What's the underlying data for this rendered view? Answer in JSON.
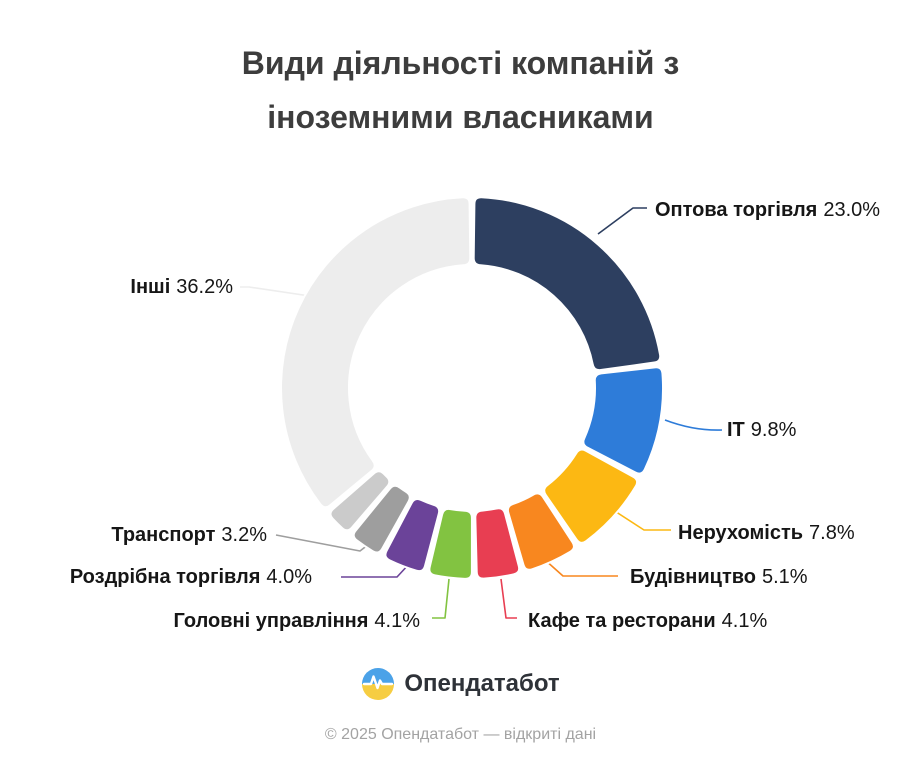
{
  "title": {
    "line1": "Види діяльності компаній з",
    "line2": "іноземними власниками"
  },
  "chart_data": {
    "type": "pie",
    "subtype": "donut",
    "title": "Види діяльності компаній з іноземними власниками",
    "unit": "%",
    "legend_position": "callout-labels",
    "segments": [
      {
        "label": "Оптова торгівля",
        "value": 23.0,
        "pct_label": "23.0%",
        "color": "#2d3f60"
      },
      {
        "label": "IT",
        "value": 9.8,
        "pct_label": "9.8%",
        "color": "#2e7cd9"
      },
      {
        "label": "Нерухомість",
        "value": 7.8,
        "pct_label": "7.8%",
        "color": "#fcb813"
      },
      {
        "label": "Будівництво",
        "value": 5.1,
        "pct_label": "5.1%",
        "color": "#f8871f"
      },
      {
        "label": "Кафе та ресторани",
        "value": 4.1,
        "pct_label": "4.1%",
        "color": "#e83e52"
      },
      {
        "label": "Головні управління",
        "value": 4.1,
        "pct_label": "4.1%",
        "color": "#82c341"
      },
      {
        "label": "Роздрібна торгівля",
        "value": 4.0,
        "pct_label": "4.0%",
        "color": "#6b4399"
      },
      {
        "label": "Транспорт",
        "value": 3.2,
        "pct_label": "3.2%",
        "color": "#9e9e9e"
      },
      {
        "label": "",
        "value": 2.7,
        "pct_label": "",
        "color": "#cbcbcb"
      },
      {
        "label": "Інші",
        "value": 36.2,
        "pct_label": "36.2%",
        "color": "#ededed"
      }
    ]
  },
  "branding": {
    "logo_text": "Опендатабот",
    "logo_icon": "opendatabot-pulse-circle",
    "logo_blue": "#4ba2e8",
    "logo_yellow": "#f6cd42"
  },
  "footer": {
    "copyright": "© 2025 Опендатабот — відкриті дані"
  }
}
